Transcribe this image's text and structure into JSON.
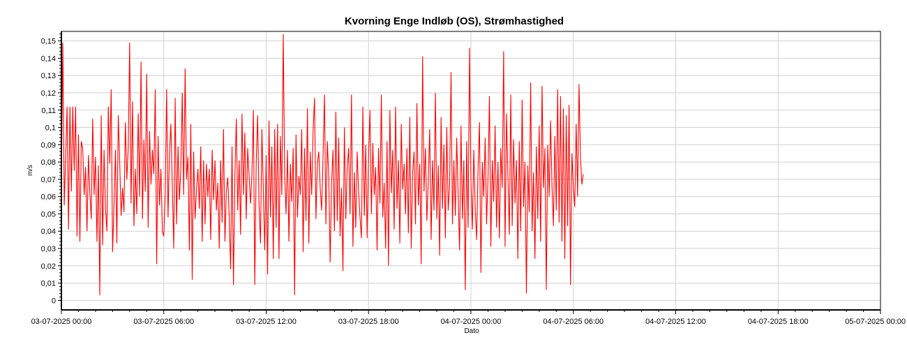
{
  "colors": {
    "series": "#ff0000",
    "grid": "#d0d0d0",
    "axis": "#000000",
    "background": "#ffffff"
  },
  "chart_data": {
    "type": "line",
    "title": "Kvorning Enge Indløb (OS), Strømhastighed",
    "xlabel": "Dato",
    "ylabel": "m/s",
    "x_tick_labels": [
      "03-07-2025 00:00",
      "03-07-2025 06:00",
      "03-07-2025 12:00",
      "03-07-2025 18:00",
      "04-07-2025 00:00",
      "04-07-2025 06:00",
      "04-07-2025 12:00",
      "04-07-2025 18:00",
      "05-07-2025 00:00"
    ],
    "y_tick_labels": [
      "0",
      "0,01",
      "0,02",
      "0,03",
      "0,04",
      "0,05",
      "0,06",
      "0,07",
      "0,08",
      "0,09",
      "0,1",
      "0,11",
      "0,12",
      "0,13",
      "0,14",
      "0,15"
    ],
    "xlim": [
      "2025-07-03 00:00",
      "2025-07-05 00:00"
    ],
    "ylim": [
      -0.0055,
      0.1555
    ],
    "grid": true,
    "legend": "none",
    "series": [
      {
        "x_start": "2025-07-03 00:00",
        "x_step_minutes": 5,
        "values": [
          0.07,
          0.149,
          0.055,
          0.083,
          0.112,
          0.041,
          0.112,
          0.063,
          0.112,
          0.075,
          0.112,
          0.037,
          0.096,
          0.034,
          0.092,
          0.088,
          0.061,
          0.077,
          0.04,
          0.084,
          0.062,
          0.047,
          0.105,
          0.061,
          0.083,
          0.034,
          0.078,
          0.003,
          0.107,
          0.032,
          0.087,
          0.053,
          0.04,
          0.112,
          0.079,
          0.122,
          0.028,
          0.055,
          0.087,
          0.033,
          0.107,
          0.08,
          0.049,
          0.065,
          0.051,
          0.103,
          0.07,
          0.088,
          0.149,
          0.056,
          0.115,
          0.043,
          0.076,
          0.05,
          0.108,
          0.06,
          0.138,
          0.047,
          0.093,
          0.063,
          0.131,
          0.042,
          0.098,
          0.067,
          0.087,
          0.073,
          0.122,
          0.021,
          0.095,
          0.055,
          0.076,
          0.04,
          0.037,
          0.061,
          0.122,
          0.048,
          0.085,
          0.102,
          0.066,
          0.03,
          0.117,
          0.044,
          0.089,
          0.058,
          0.076,
          0.12,
          0.061,
          0.134,
          0.07,
          0.083,
          0.029,
          0.102,
          0.012,
          0.086,
          0.047,
          0.064,
          0.076,
          0.053,
          0.089,
          0.034,
          0.081,
          0.044,
          0.079,
          0.06,
          0.076,
          0.035,
          0.087,
          0.058,
          0.081,
          0.052,
          0.068,
          0.03,
          0.081,
          0.045,
          0.099,
          0.034,
          0.063,
          0.071,
          0.048,
          0.018,
          0.089,
          0.009,
          0.072,
          0.105,
          0.052,
          0.081,
          0.038,
          0.108,
          0.061,
          0.097,
          0.047,
          0.088,
          0.072,
          0.056,
          0.073,
          0.11,
          0.009,
          0.08,
          0.107,
          0.055,
          0.033,
          0.099,
          0.064,
          0.029,
          0.084,
          0.015,
          0.104,
          0.048,
          0.089,
          0.024,
          0.099,
          0.042,
          0.102,
          0.024,
          0.095,
          0.061,
          0.154,
          0.073,
          0.05,
          0.087,
          0.034,
          0.079,
          0.057,
          0.088,
          0.003,
          0.096,
          0.048,
          0.072,
          0.061,
          0.099,
          0.028,
          0.088,
          0.046,
          0.111,
          0.033,
          0.086,
          0.061,
          0.098,
          0.117,
          0.047,
          0.079,
          0.086,
          0.065,
          0.052,
          0.083,
          0.119,
          0.044,
          0.092,
          0.072,
          0.022,
          0.068,
          0.087,
          0.04,
          0.109,
          0.046,
          0.094,
          0.037,
          0.065,
          0.017,
          0.1,
          0.047,
          0.077,
          0.088,
          0.05,
          0.119,
          0.031,
          0.074,
          0.042,
          0.086,
          0.063,
          0.048,
          0.036,
          0.112,
          0.049,
          0.09,
          0.036,
          0.083,
          0.11,
          0.05,
          0.091,
          0.061,
          0.077,
          0.029,
          0.088,
          0.056,
          0.119,
          0.048,
          0.068,
          0.03,
          0.092,
          0.02,
          0.11,
          0.062,
          0.087,
          0.041,
          0.112,
          0.053,
          0.081,
          0.033,
          0.102,
          0.064,
          0.079,
          0.05,
          0.088,
          0.039,
          0.106,
          0.03,
          0.074,
          0.086,
          0.044,
          0.114,
          0.055,
          0.079,
          0.021,
          0.141,
          0.063,
          0.088,
          0.046,
          0.069,
          0.099,
          0.035,
          0.081,
          0.052,
          0.12,
          0.047,
          0.078,
          0.026,
          0.106,
          0.053,
          0.09,
          0.036,
          0.1,
          0.052,
          0.067,
          0.132,
          0.044,
          0.081,
          0.049,
          0.094,
          0.061,
          0.029,
          0.101,
          0.047,
          0.081,
          0.006,
          0.092,
          0.042,
          0.146,
          0.069,
          0.041,
          0.087,
          0.053,
          0.035,
          0.076,
          0.103,
          0.016,
          0.08,
          0.06,
          0.094,
          0.044,
          0.071,
          0.118,
          0.031,
          0.081,
          0.057,
          0.101,
          0.042,
          0.08,
          0.036,
          0.088,
          0.065,
          0.144,
          0.031,
          0.108,
          0.072,
          0.038,
          0.119,
          0.043,
          0.093,
          0.056,
          0.081,
          0.024,
          0.092,
          0.04,
          0.116,
          0.054,
          0.08,
          0.004,
          0.078,
          0.051,
          0.126,
          0.04,
          0.074,
          0.024,
          0.089,
          0.047,
          0.101,
          0.034,
          0.124,
          0.065,
          0.088,
          0.006,
          0.09,
          0.06,
          0.104,
          0.066,
          0.043,
          0.095,
          0.052,
          0.122,
          0.045,
          0.118,
          0.034,
          0.111,
          0.024,
          0.107,
          0.043,
          0.113,
          0.009,
          0.085,
          0.066,
          0.054,
          0.102,
          0.06,
          0.125,
          0.083,
          0.067,
          0.073
        ]
      }
    ]
  }
}
